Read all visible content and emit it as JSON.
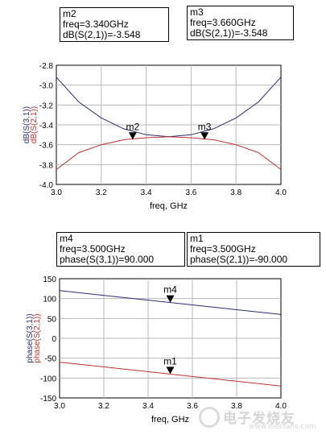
{
  "chart_data": [
    {
      "type": "line",
      "xlabel": "freq, GHz",
      "ylabel_series": [
        "dB(S(3,1))",
        "dB(S(2,1))"
      ],
      "xlim": [
        3.0,
        4.0
      ],
      "ylim": [
        -4.0,
        -2.8
      ],
      "x_ticks": [
        "3.0",
        "3.2",
        "3.4",
        "3.6",
        "3.8",
        "4.0"
      ],
      "y_ticks": [
        "-2.8",
        "-3.0",
        "-3.2",
        "-3.4",
        "-3.6",
        "-3.8",
        "-4.0"
      ],
      "grid": true,
      "series": [
        {
          "color": "#2a2a78",
          "x": [
            3.0,
            3.1,
            3.2,
            3.3,
            3.4,
            3.5,
            3.6,
            3.7,
            3.8,
            3.9,
            4.0
          ],
          "y": [
            -2.92,
            -3.17,
            -3.33,
            -3.44,
            -3.5,
            -3.52,
            -3.5,
            -3.44,
            -3.33,
            -3.17,
            -2.92
          ]
        },
        {
          "color": "#c03030",
          "x": [
            3.0,
            3.1,
            3.2,
            3.3,
            3.4,
            3.5,
            3.6,
            3.7,
            3.8,
            3.9,
            4.0
          ],
          "y": [
            -3.85,
            -3.68,
            -3.6,
            -3.55,
            -3.53,
            -3.52,
            -3.53,
            -3.55,
            -3.6,
            -3.68,
            -3.85
          ]
        }
      ],
      "markers": [
        {
          "label": "m2",
          "x": 3.34,
          "y": -3.548
        },
        {
          "label": "m3",
          "x": 3.66,
          "y": -3.548
        }
      ]
    },
    {
      "type": "line",
      "xlabel": "freq, GHz",
      "ylabel_series": [
        "phase(S(3,1))",
        "phase(S(2,1))"
      ],
      "xlim": [
        3.0,
        4.0
      ],
      "ylim": [
        -150,
        150
      ],
      "x_ticks": [
        "3.0",
        "3.2",
        "3.4",
        "3.6",
        "3.8",
        "4.0"
      ],
      "y_ticks": [
        "150",
        "100",
        "50",
        "0",
        "-50",
        "-100",
        "-150"
      ],
      "grid": true,
      "series": [
        {
          "color": "#2a2a78",
          "x": [
            3.0,
            4.0
          ],
          "y": [
            120,
            60
          ]
        },
        {
          "color": "#c03030",
          "x": [
            3.0,
            4.0
          ],
          "y": [
            -60,
            -120
          ]
        }
      ],
      "markers": [
        {
          "label": "m4",
          "x": 3.5,
          "y": 90
        },
        {
          "label": "m1",
          "x": 3.5,
          "y": -90
        }
      ]
    }
  ],
  "marker_boxes": [
    {
      "name": "m2",
      "lines": [
        "m2",
        "freq=3.340GHz",
        "dB(S(2,1))=-3.548"
      ]
    },
    {
      "name": "m3",
      "lines": [
        "m3",
        "freq=3.660GHz",
        "dB(S(2,1))=-3.548"
      ]
    },
    {
      "name": "m4",
      "lines": [
        "m4",
        "freq=3.500GHz",
        "phase(S(3,1))=90.000"
      ]
    },
    {
      "name": "m1",
      "lines": [
        "m1",
        "freq=3.500GHz",
        "phase(S(2,1))=-90.000"
      ]
    }
  ],
  "watermark": {
    "title": "电子发烧友",
    "sub": "www.elecfans.com"
  },
  "colors": {
    "series_blue": "#2a2a78",
    "series_red": "#c03030",
    "grid": "#b8b8b8",
    "plot_bg": "#ffffff"
  }
}
